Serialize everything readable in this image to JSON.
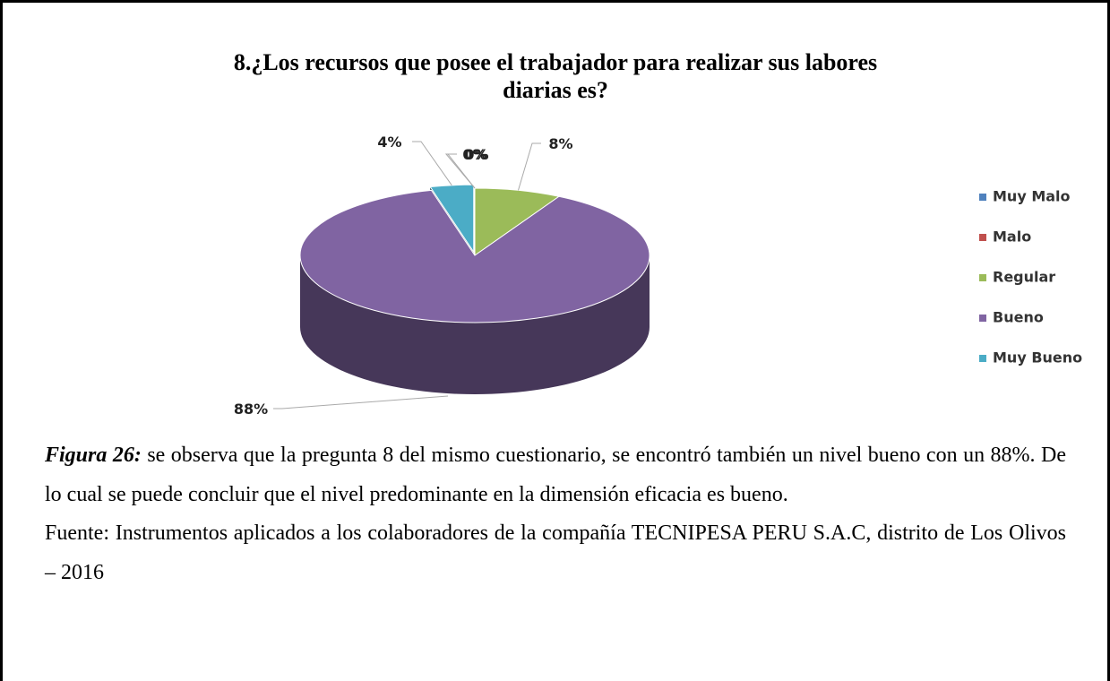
{
  "chart_data": {
    "type": "pie",
    "title": "8.¿Los recursos que posee el trabajador para realizar sus labores diarias es?",
    "categories": [
      "Muy Malo",
      "Malo",
      "Regular",
      "Bueno",
      "Muy Bueno"
    ],
    "values": [
      0,
      0,
      8,
      88,
      4
    ],
    "value_labels": [
      "0%",
      "0%",
      "8%",
      "88%",
      "4%"
    ],
    "colors": [
      "#4f81bd",
      "#c0504d",
      "#9bbb59",
      "#8064a2",
      "#4bacc6"
    ],
    "legend": "right"
  },
  "figure": {
    "label": "Figura 26:",
    "text": " se observa que la pregunta 8 del mismo cuestionario, se encontró también un nivel bueno con un 88%. De lo cual se puede concluir que el nivel predominante en la dimensión eficacia es bueno.",
    "source": "Fuente: Instrumentos aplicados a los colaboradores de la compañía TECNIPESA PERU S.A.C, distrito de Los Olivos – 2016"
  }
}
